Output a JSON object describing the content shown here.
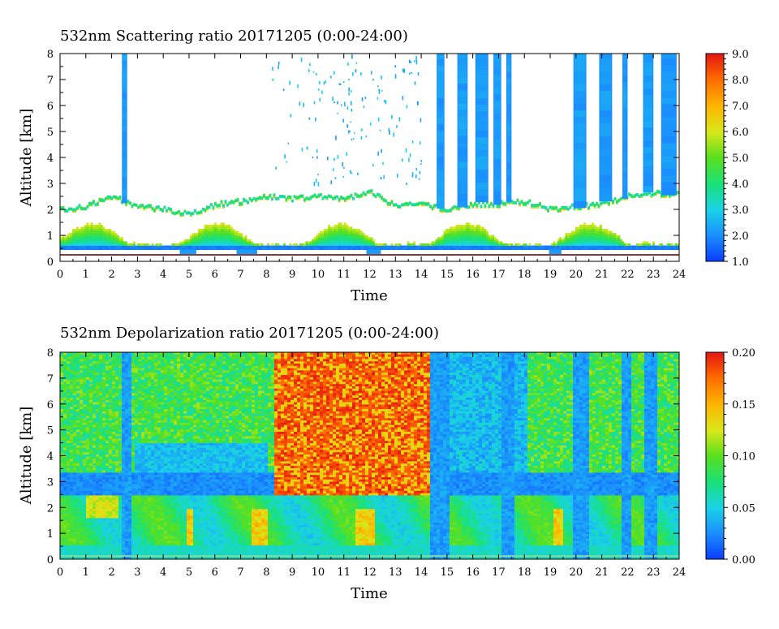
{
  "chart_data": [
    {
      "type": "heatmap",
      "title": "532nm Scattering ratio  20171205 (0:00-24:00)",
      "xlabel": "Time",
      "ylabel": "Altitude [km]",
      "xlim": [
        0,
        24
      ],
      "ylim": [
        0,
        8
      ],
      "x_ticks": [
        "0",
        "1",
        "2",
        "3",
        "4",
        "5",
        "6",
        "7",
        "8",
        "9",
        "10",
        "11",
        "12",
        "13",
        "14",
        "15",
        "16",
        "17",
        "18",
        "19",
        "20",
        "21",
        "22",
        "23",
        "24"
      ],
      "y_ticks": [
        "0",
        "1",
        "2",
        "3",
        "4",
        "5",
        "6",
        "7",
        "8"
      ],
      "colorbar": {
        "min": 1.0,
        "max": 9.0,
        "ticks": [
          "1.0",
          "2.0",
          "3.0",
          "4.0",
          "5.0",
          "6.0",
          "7.0",
          "8.0",
          "9.0"
        ]
      },
      "cloud_top_km": [
        2.1,
        2.2,
        2.6,
        2.2,
        2.1,
        1.9,
        2.3,
        2.4,
        2.6,
        2.5,
        2.6,
        2.5,
        2.8,
        2.2,
        2.3,
        2.1,
        2.3,
        2.3,
        2.4,
        2.1,
        2.2,
        2.3,
        2.6,
        2.7
      ],
      "vertical_columns_h": [
        [
          2.4,
          2.6
        ],
        [
          14.6,
          14.9
        ],
        [
          15.4,
          15.8
        ],
        [
          16.1,
          16.6
        ],
        [
          16.8,
          17.1
        ],
        [
          17.3,
          17.5
        ],
        [
          19.9,
          20.4
        ],
        [
          20.9,
          21.4
        ],
        [
          21.8,
          22.0
        ],
        [
          22.6,
          23.0
        ],
        [
          23.3,
          23.9
        ]
      ],
      "ground_line_km": 0.25
    },
    {
      "type": "heatmap",
      "title": "532nm Depolarization ratio  20171205 (0:00-24:00)",
      "xlabel": "Time",
      "ylabel": "Altitude [km]",
      "xlim": [
        0,
        24
      ],
      "ylim": [
        0,
        8
      ],
      "x_ticks": [
        "0",
        "1",
        "2",
        "3",
        "4",
        "5",
        "6",
        "7",
        "8",
        "9",
        "10",
        "11",
        "12",
        "13",
        "14",
        "15",
        "16",
        "17",
        "18",
        "19",
        "20",
        "21",
        "22",
        "23",
        "24"
      ],
      "y_ticks": [
        "0",
        "1",
        "2",
        "3",
        "4",
        "5",
        "6",
        "7",
        "8"
      ],
      "colorbar": {
        "min": 0.0,
        "max": 0.2,
        "ticks": [
          "0.00",
          "0.05",
          "0.10",
          "0.15",
          "0.20"
        ]
      },
      "low_depol_columns_h": [
        [
          2.3,
          2.7
        ],
        [
          14.3,
          15.0
        ],
        [
          17.0,
          17.6
        ],
        [
          19.8,
          20.5
        ],
        [
          21.7,
          22.1
        ],
        [
          22.6,
          23.1
        ]
      ],
      "high_aerosol_h": [
        [
          4.8,
          5.1
        ],
        [
          7.3,
          8.0
        ],
        [
          11.4,
          12.2
        ],
        [
          19.0,
          19.4
        ]
      ]
    }
  ]
}
